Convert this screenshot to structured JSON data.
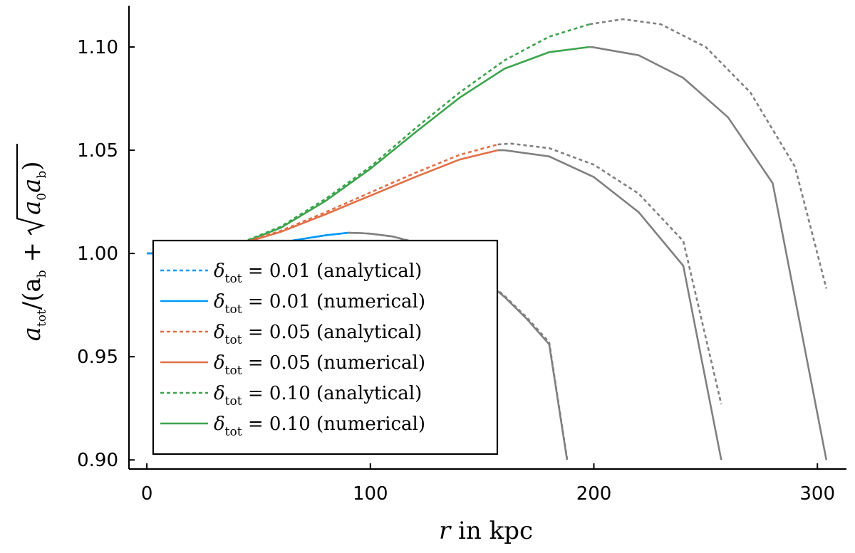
{
  "chart_data": {
    "type": "line",
    "title": "",
    "xlabel": {
      "var": "r",
      "text": " in kpc"
    },
    "ylabel": {
      "left": "a",
      "left_sub": "tot",
      "mid": "/(a",
      "mid_sub": "b",
      "plus": " + ",
      "root_a0": "a",
      "root_a0_sub": "0",
      "root_ab": "a",
      "root_ab_sub": "b",
      "close": ")"
    },
    "xlim": [
      -8,
      313
    ],
    "ylim": [
      0.8956,
      1.12
    ],
    "xticks": [
      0,
      100,
      200,
      300
    ],
    "xtick_labels": [
      "0",
      "100",
      "200",
      "300"
    ],
    "yticks": [
      0.9,
      0.95,
      1.0,
      1.05,
      1.1
    ],
    "ytick_labels": [
      "0.90",
      "0.95",
      "1.00",
      "1.05",
      "1.10"
    ],
    "grid": false,
    "legend_position": "lower-left",
    "extrapolation_color": "#808080",
    "series": [
      {
        "name": "δ_tot = 0.01 (analytical)",
        "delta": "0.01",
        "method": "(analytical)",
        "color": "#009AFA",
        "dash": true,
        "x": [
          0,
          10,
          20,
          30,
          40,
          50,
          60,
          70,
          80,
          90,
          95,
          100,
          110,
          120,
          130,
          140,
          150,
          160,
          170,
          180,
          188
        ],
        "y": [
          1.0,
          1.0001,
          1.0005,
          1.0012,
          1.0023,
          1.0037,
          1.0053,
          1.0071,
          1.0088,
          1.01,
          1.0099,
          1.0096,
          1.0082,
          1.0055,
          1.0012,
          0.9955,
          0.9885,
          0.9795,
          0.969,
          0.957,
          0.9006
        ]
      },
      {
        "name": "δ_tot = 0.01 (numerical)",
        "delta": "0.01",
        "method": "(numerical)",
        "color": "#009AFA",
        "dash": false,
        "x": [
          0,
          10,
          20,
          30,
          40,
          50,
          60,
          70,
          80,
          90,
          95,
          100,
          110,
          120,
          130,
          140,
          150,
          160,
          170,
          180,
          188
        ],
        "y": [
          1.0,
          1.0001,
          1.0005,
          1.0012,
          1.0023,
          1.0037,
          1.0053,
          1.0071,
          1.0088,
          1.01,
          1.0099,
          1.0096,
          1.0082,
          1.0053,
          1.001,
          0.9952,
          0.988,
          0.979,
          0.9683,
          0.956,
          0.9
        ]
      },
      {
        "name": "δ_tot = 0.05 (analytical)",
        "delta": "0.05",
        "method": "(analytical)",
        "color": "#E26F46",
        "dash": true,
        "x": [
          0,
          20,
          40,
          60,
          80,
          100,
          120,
          140,
          157,
          163,
          180,
          200,
          220,
          240,
          257
        ],
        "y": [
          1.0,
          1.0008,
          1.0042,
          1.011,
          1.02,
          1.0295,
          1.039,
          1.0478,
          1.0528,
          1.0532,
          1.051,
          1.043,
          1.029,
          1.006,
          0.927
        ]
      },
      {
        "name": "δ_tot = 0.05 (numerical)",
        "delta": "0.05",
        "method": "(numerical)",
        "color": "#E26F46",
        "dash": false,
        "x": [
          0,
          20,
          40,
          60,
          80,
          100,
          120,
          140,
          157,
          160,
          180,
          200,
          220,
          240,
          257
        ],
        "y": [
          1.0,
          1.0008,
          1.004,
          1.0105,
          1.019,
          1.028,
          1.037,
          1.0455,
          1.05,
          1.05,
          1.047,
          1.037,
          1.02,
          0.994,
          0.9
        ]
      },
      {
        "name": "δ_tot = 0.10 (analytical)",
        "delta": "0.10",
        "method": "(analytical)",
        "color": "#3DA44D",
        "dash": true,
        "x": [
          0,
          20,
          40,
          60,
          80,
          100,
          120,
          140,
          160,
          180,
          198,
          213,
          230,
          250,
          270,
          290,
          304
        ],
        "y": [
          1.0,
          1.0008,
          1.0042,
          1.013,
          1.0265,
          1.042,
          1.0605,
          1.078,
          1.0935,
          1.105,
          1.111,
          1.1135,
          1.111,
          1.1,
          1.078,
          1.042,
          0.983
        ]
      },
      {
        "name": "δ_tot = 0.10 (numerical)",
        "delta": "0.10",
        "method": "(numerical)",
        "color": "#3DA44D",
        "dash": false,
        "x": [
          0,
          20,
          40,
          60,
          80,
          100,
          120,
          140,
          160,
          180,
          198,
          200,
          220,
          240,
          260,
          280,
          304
        ],
        "y": [
          1.0,
          1.0008,
          1.004,
          1.0125,
          1.0255,
          1.041,
          1.0585,
          1.0755,
          1.0895,
          1.0975,
          1.1,
          1.0998,
          1.096,
          1.085,
          1.066,
          1.034,
          0.9
        ]
      }
    ],
    "extrapolation_start_x": [
      90,
      90,
      157,
      157,
      198,
      198
    ]
  }
}
